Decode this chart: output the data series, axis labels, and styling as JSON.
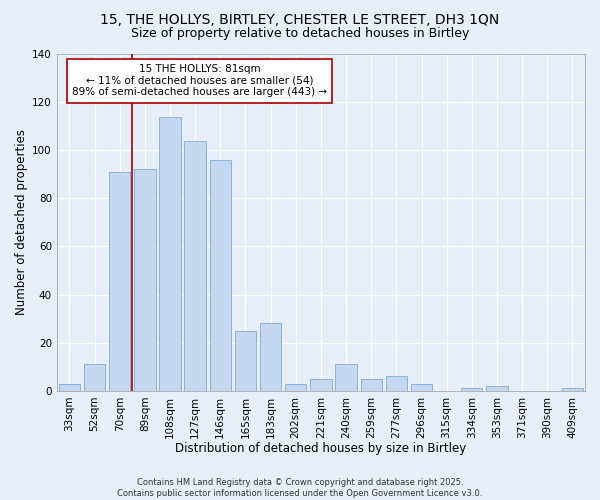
{
  "title1": "15, THE HOLLYS, BIRTLEY, CHESTER LE STREET, DH3 1QN",
  "title2": "Size of property relative to detached houses in Birtley",
  "xlabel": "Distribution of detached houses by size in Birtley",
  "ylabel": "Number of detached properties",
  "categories": [
    "33sqm",
    "52sqm",
    "70sqm",
    "89sqm",
    "108sqm",
    "127sqm",
    "146sqm",
    "165sqm",
    "183sqm",
    "202sqm",
    "221sqm",
    "240sqm",
    "259sqm",
    "277sqm",
    "296sqm",
    "315sqm",
    "334sqm",
    "353sqm",
    "371sqm",
    "390sqm",
    "409sqm"
  ],
  "values": [
    3,
    11,
    91,
    92,
    114,
    104,
    96,
    25,
    28,
    3,
    5,
    11,
    5,
    6,
    3,
    0,
    1,
    2,
    0,
    0,
    1
  ],
  "bar_color": "#c5d8f0",
  "bar_edge_color": "#7aadd4",
  "vline_color": "#aa0000",
  "vline_index": 2.5,
  "annotation_text": "15 THE HOLLYS: 81sqm\n← 11% of detached houses are smaller (54)\n89% of semi-detached houses are larger (443) →",
  "annotation_box_color": "#ffffff",
  "annotation_box_edge": "#aa0000",
  "bg_color": "#e8eef8",
  "grid_color": "#ffffff",
  "ylim": [
    0,
    140
  ],
  "yticks": [
    0,
    20,
    40,
    60,
    80,
    100,
    120,
    140
  ],
  "footer": "Contains HM Land Registry data © Crown copyright and database right 2025.\nContains public sector information licensed under the Open Government Licence v3.0.",
  "title1_fontsize": 10,
  "title2_fontsize": 9,
  "xlabel_fontsize": 8.5,
  "ylabel_fontsize": 8.5,
  "tick_fontsize": 7.5,
  "annotation_fontsize": 7.5,
  "footer_fontsize": 6
}
